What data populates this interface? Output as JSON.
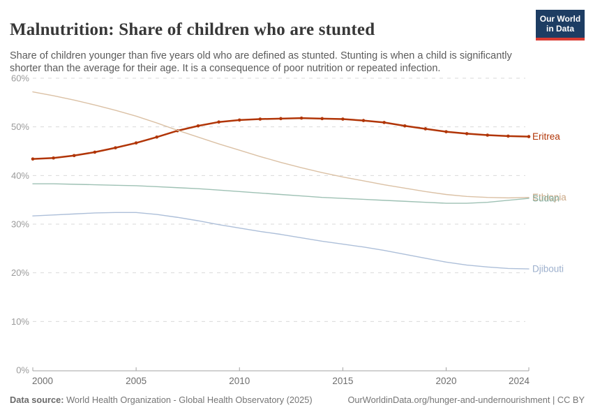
{
  "header": {
    "title": "Malnutrition: Share of children who are stunted",
    "subtitle": "Share of children younger than five years old who are defined as stunted. Stunting is when a child is significantly shorter than the average for their age. It is a consequence of poor nutrition or repeated infection."
  },
  "logo": {
    "line1": "Our World",
    "line2": "in Data",
    "bg_color": "#1D3D63",
    "stripe_color": "#D93B32"
  },
  "chart_data": {
    "type": "line",
    "title": "Malnutrition: Share of children who are stunted",
    "xlabel": "",
    "ylabel": "",
    "xlim": [
      2000,
      2024
    ],
    "ylim": [
      0,
      60
    ],
    "x_ticks": [
      2000,
      2005,
      2010,
      2015,
      2020,
      2024
    ],
    "y_ticks": [
      0,
      10,
      20,
      30,
      40,
      50,
      60
    ],
    "y_tick_suffix": "%",
    "grid": "horizontal-dashed",
    "legend_position": "right-end-labels",
    "x": [
      2000,
      2001,
      2002,
      2003,
      2004,
      2005,
      2006,
      2007,
      2008,
      2009,
      2010,
      2011,
      2012,
      2013,
      2014,
      2015,
      2016,
      2017,
      2018,
      2019,
      2020,
      2021,
      2022,
      2023,
      2024
    ],
    "series": [
      {
        "name": "Eritrea",
        "color": "#B13507",
        "label_color": "#B13507",
        "emphasis": true,
        "markers": true,
        "values": [
          43.4,
          43.6,
          44.1,
          44.8,
          45.7,
          46.7,
          47.9,
          49.2,
          50.2,
          51.0,
          51.4,
          51.6,
          51.7,
          51.8,
          51.7,
          51.6,
          51.3,
          50.9,
          50.2,
          49.6,
          49.0,
          48.6,
          48.3,
          48.1,
          48.0
        ]
      },
      {
        "name": "Ethiopia",
        "color": "#DBC1A5",
        "label_color": "#CBA886",
        "emphasis": false,
        "markers": false,
        "values": [
          57.2,
          56.4,
          55.5,
          54.5,
          53.4,
          52.2,
          50.8,
          49.3,
          47.9,
          46.5,
          45.2,
          43.9,
          42.7,
          41.6,
          40.6,
          39.7,
          38.9,
          38.1,
          37.4,
          36.7,
          36.1,
          35.7,
          35.5,
          35.4,
          35.5
        ]
      },
      {
        "name": "Sudan",
        "color": "#9EC1B4",
        "label_color": "#87B0A1",
        "emphasis": false,
        "markers": false,
        "values": [
          38.3,
          38.3,
          38.2,
          38.1,
          38.0,
          37.9,
          37.7,
          37.5,
          37.3,
          37.0,
          36.7,
          36.4,
          36.1,
          35.8,
          35.5,
          35.3,
          35.1,
          34.9,
          34.7,
          34.5,
          34.3,
          34.3,
          34.5,
          34.9,
          35.3
        ]
      },
      {
        "name": "Djibouti",
        "color": "#ADBFD9",
        "label_color": "#9DB0CD",
        "emphasis": false,
        "markers": false,
        "values": [
          31.7,
          31.9,
          32.1,
          32.3,
          32.4,
          32.4,
          32.0,
          31.4,
          30.7,
          29.9,
          29.2,
          28.5,
          27.9,
          27.2,
          26.5,
          25.9,
          25.3,
          24.6,
          23.8,
          23.0,
          22.2,
          21.6,
          21.2,
          20.9,
          20.8
        ]
      }
    ],
    "axis_colors": {
      "grid": "#d9d9d9",
      "axis_line": "#a3a3a3",
      "y_label": "#9b9b9b",
      "x_label": "#6e6e6e"
    }
  },
  "footer": {
    "datasource_label": "Data source:",
    "datasource_text": " World Health Organization - Global Health Observatory (2025)",
    "link_text": "OurWorldinData.org/hunger-and-undernourishment | CC BY"
  }
}
